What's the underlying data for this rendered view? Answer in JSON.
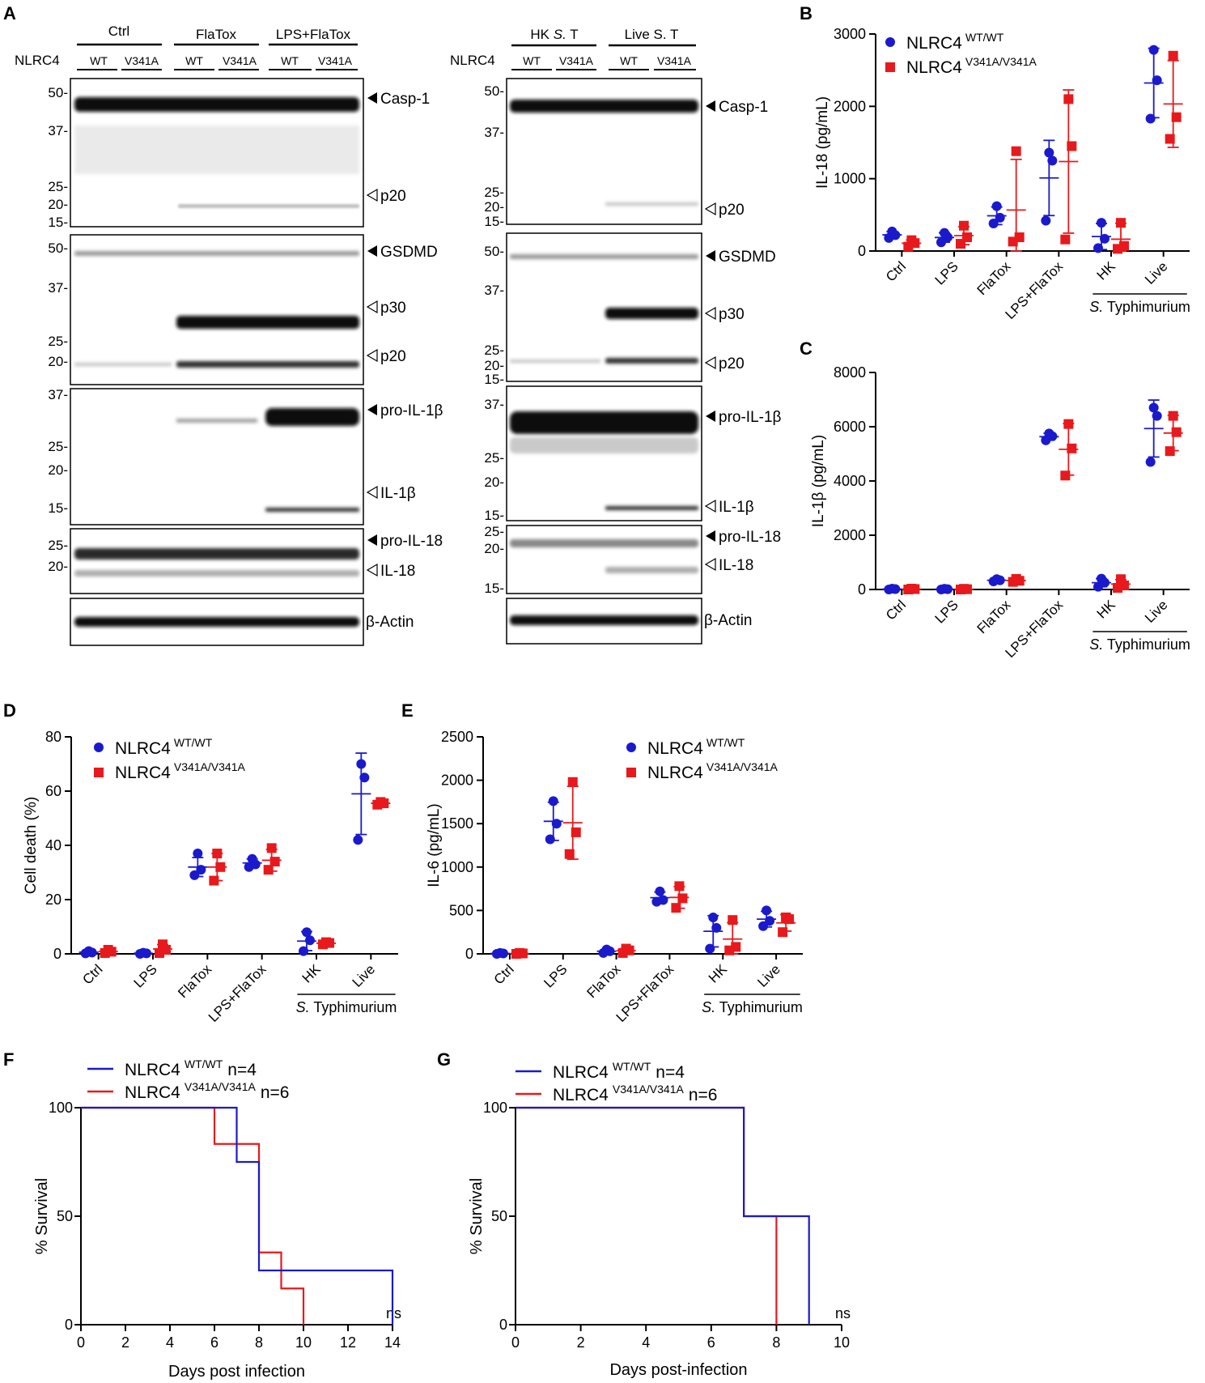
{
  "panel_letters": {
    "A": "A",
    "B": "B",
    "C": "C",
    "D": "D",
    "E": "E",
    "F": "F",
    "G": "G"
  },
  "colors": {
    "wt": "#1a1acc",
    "mut": "#e8191c",
    "axis": "#000000",
    "blot": "#111111"
  },
  "legend": {
    "wt_base": "NLRC4",
    "wt_sup": "WT/WT",
    "mut_base": "NLRC4",
    "mut_sup": "V341A/V341A",
    "n_wt": "n=4",
    "n_mut": "n=6"
  },
  "blot_left": {
    "row_label": "NLRC4",
    "groups": [
      "Ctrl",
      "FlaTox",
      "LPS+FlaTox"
    ],
    "genotypes": [
      "WT",
      "V341A",
      "WT",
      "V341A",
      "WT",
      "V341A"
    ],
    "markers_casp": [
      "50-",
      "37-",
      "25-",
      "20-",
      "15-"
    ],
    "markers_gsdmd": [
      "50-",
      "37-",
      "25-",
      "20-"
    ],
    "markers_il1b": [
      "37-",
      "25-",
      "20-",
      "15-"
    ],
    "markers_il18": [
      "25-",
      "20-"
    ]
  },
  "blot_right": {
    "row_label": "NLRC4",
    "group_hk_a": "HK ",
    "group_hk_b": "S.",
    "group_hk_c": " T",
    "group_live": "Live S. T",
    "genotypes": [
      "WT",
      "V341A",
      "WT",
      "V341A"
    ],
    "markers_casp": [
      "50-",
      "37-",
      "25-",
      "20-",
      "15-"
    ],
    "markers_gsdmd": [
      "50-",
      "37-",
      "25-",
      "20-",
      "15-"
    ],
    "markers_il1b": [
      "37-",
      "25-",
      "20-",
      "15-"
    ],
    "markers_il18": [
      "25-",
      "20-",
      "15-"
    ]
  },
  "blot_labels": {
    "casp1": "Casp-1",
    "p20": "p20",
    "gsdmd": "GSDMD",
    "p30": "p30",
    "pro_il1b": "pro-IL-1β",
    "il1b": "IL-1β",
    "pro_il18": "pro-IL-18",
    "il18": "IL-18",
    "actin": "β-Actin"
  },
  "group_label_italic": "S.",
  "group_label_rest": " Typhimurium",
  "chart_data": [
    {
      "panel": "B",
      "type": "scatter",
      "ylabel": "IL-18 (pg/mL)",
      "ylim": [
        0,
        3000
      ],
      "yticks": [
        "0",
        "1000",
        "2000",
        "3000"
      ],
      "categories": [
        "Ctrl",
        "LPS",
        "FlaTox",
        "LPS+FlaTox",
        "HK",
        "Live"
      ],
      "series": [
        {
          "name": "NLRC4 WT/WT",
          "points": [
            [
              180,
              220,
              270
            ],
            [
              120,
              190,
              250
            ],
            [
              380,
              460,
              620
            ],
            [
              420,
              1250,
              1360
            ],
            [
              40,
              170,
              390
            ],
            [
              1830,
              2360,
              2780
            ]
          ],
          "mean": [
            223,
            187,
            487,
            1010,
            200,
            2323
          ],
          "sd": [
            45,
            65,
            122,
            520,
            180,
            480
          ]
        },
        {
          "name": "NLRC4 V341A/V341A",
          "points": [
            [
              60,
              110,
              150
            ],
            [
              100,
              190,
              350
            ],
            [
              130,
              190,
              1380
            ],
            [
              160,
              1450,
              2100
            ],
            [
              30,
              70,
              390
            ],
            [
              1550,
              1850,
              2700
            ]
          ],
          "mean": [
            107,
            213,
            567,
            1237,
            163,
            2033
          ],
          "sd": [
            45,
            125,
            700,
            990,
            220,
            600
          ]
        }
      ]
    },
    {
      "panel": "C",
      "type": "scatter",
      "ylabel": "IL-1β (pg/mL)",
      "ylim": [
        0,
        8000
      ],
      "yticks": [
        "0",
        "2000",
        "4000",
        "6000",
        "8000"
      ],
      "categories": [
        "Ctrl",
        "LPS",
        "FlaTox",
        "LPS+FlaTox",
        "HK",
        "Live"
      ],
      "series": [
        {
          "name": "NLRC4 WT/WT",
          "points": [
            [
              0,
              15,
              30
            ],
            [
              0,
              10,
              25
            ],
            [
              300,
              340,
              380
            ],
            [
              5500,
              5650,
              5750
            ],
            [
              100,
              250,
              400
            ],
            [
              4700,
              6400,
              6700
            ]
          ],
          "mean": [
            15,
            12,
            340,
            5633,
            250,
            5933
          ],
          "sd": [
            15,
            12,
            40,
            125,
            150,
            1050
          ]
        },
        {
          "name": "NLRC4 V341A/V341A",
          "points": [
            [
              0,
              15,
              30
            ],
            [
              0,
              10,
              25
            ],
            [
              280,
              320,
              390
            ],
            [
              4200,
              5200,
              6100
            ],
            [
              60,
              150,
              380
            ],
            [
              5100,
              5800,
              6400
            ]
          ],
          "mean": [
            15,
            12,
            330,
            5167,
            197,
            5767
          ],
          "sd": [
            15,
            12,
            55,
            950,
            165,
            650
          ]
        }
      ]
    },
    {
      "panel": "D",
      "type": "scatter",
      "ylabel": "Cell death (%)",
      "ylim": [
        0,
        80
      ],
      "yticks": [
        "0",
        "20",
        "40",
        "60",
        "80"
      ],
      "categories": [
        "Ctrl",
        "LPS",
        "FlaTox",
        "LPS+FlaTox",
        "HK",
        "Live"
      ],
      "series": [
        {
          "name": "NLRC4 WT/WT",
          "points": [
            [
              0.2,
              0.5,
              1.0
            ],
            [
              0,
              0.2,
              0.4
            ],
            [
              29,
              31,
              37
            ],
            [
              32,
              33,
              35
            ],
            [
              1,
              5,
              8
            ],
            [
              42,
              65,
              70
            ]
          ],
          "mean": [
            0.6,
            0.2,
            32,
            33.5,
            4.7,
            59
          ],
          "sd": [
            0.4,
            0.2,
            3.5,
            1.5,
            3.5,
            15
          ]
        },
        {
          "name": "NLRC4 V341A/V341A",
          "points": [
            [
              0.3,
              0.8,
              1.5
            ],
            [
              0.3,
              1.5,
              3.5
            ],
            [
              27,
              32,
              37
            ],
            [
              31,
              34,
              39
            ],
            [
              3.5,
              4,
              4.3
            ],
            [
              55,
              55.5,
              56
            ]
          ],
          "mean": [
            0.9,
            1.8,
            32,
            34.5,
            3.9,
            55.5
          ],
          "sd": [
            0.6,
            1.6,
            5,
            4,
            0.4,
            0.5
          ]
        }
      ]
    },
    {
      "panel": "E",
      "type": "scatter",
      "ylabel": "IL-6 (pg/mL)",
      "ylim": [
        0,
        2500
      ],
      "yticks": [
        "0",
        "500",
        "1000",
        "1500",
        "2000",
        "2500"
      ],
      "categories": [
        "Ctrl",
        "LPS",
        "FlaTox",
        "LPS+FlaTox",
        "HK",
        "Live"
      ],
      "series": [
        {
          "name": "NLRC4 WT/WT",
          "points": [
            [
              0,
              5,
              10
            ],
            [
              1320,
              1500,
              1760
            ],
            [
              10,
              30,
              50
            ],
            [
              600,
              620,
              720
            ],
            [
              60,
              300,
              420
            ],
            [
              320,
              380,
              500
            ]
          ],
          "mean": [
            5,
            1527,
            30,
            647,
            260,
            400
          ],
          "sd": [
            5,
            220,
            20,
            65,
            180,
            90
          ]
        },
        {
          "name": "NLRC4 V341A/V341A",
          "points": [
            [
              0,
              5,
              10
            ],
            [
              1150,
              1400,
              1980
            ],
            [
              10,
              40,
              60
            ],
            [
              530,
              640,
              780
            ],
            [
              40,
              80,
              390
            ],
            [
              250,
              400,
              420
            ]
          ],
          "mean": [
            5,
            1510,
            37,
            650,
            170,
            357
          ],
          "sd": [
            5,
            420,
            25,
            125,
            190,
            95
          ]
        }
      ]
    },
    {
      "panel": "F",
      "type": "line",
      "ylabel": "% Survival",
      "xlabel": "Days post infection",
      "xlim": [
        0,
        14
      ],
      "ylim": [
        0,
        100
      ],
      "xticks": [
        "0",
        "2",
        "4",
        "6",
        "8",
        "10",
        "12",
        "14"
      ],
      "yticks": [
        "0",
        "50",
        "100"
      ],
      "annotation": "ns",
      "series": [
        {
          "name": "NLRC4 WT/WT n=4",
          "steps": [
            [
              0,
              100
            ],
            [
              7,
              75
            ],
            [
              8,
              25
            ],
            [
              14,
              0
            ]
          ]
        },
        {
          "name": "NLRC4 V341A/V341A n=6",
          "steps": [
            [
              0,
              100
            ],
            [
              6,
              83.3
            ],
            [
              7,
              83.3
            ],
            [
              8,
              33.3
            ],
            [
              9,
              16.7
            ],
            [
              10,
              0
            ]
          ]
        }
      ]
    },
    {
      "panel": "G",
      "type": "line",
      "ylabel": "% Survival",
      "xlabel": "Days post-infection",
      "xlim": [
        0,
        10
      ],
      "ylim": [
        0,
        100
      ],
      "xticks": [
        "0",
        "2",
        "4",
        "6",
        "8",
        "10"
      ],
      "yticks": [
        "0",
        "50",
        "100"
      ],
      "annotation": "ns",
      "series": [
        {
          "name": "NLRC4 WT/WT n=4",
          "steps": [
            [
              0,
              100
            ],
            [
              7,
              50
            ],
            [
              9,
              0
            ]
          ]
        },
        {
          "name": "NLRC4 V341A/V341A n=6",
          "steps": [
            [
              0,
              100
            ],
            [
              7,
              50
            ],
            [
              8,
              0
            ]
          ]
        }
      ]
    }
  ]
}
